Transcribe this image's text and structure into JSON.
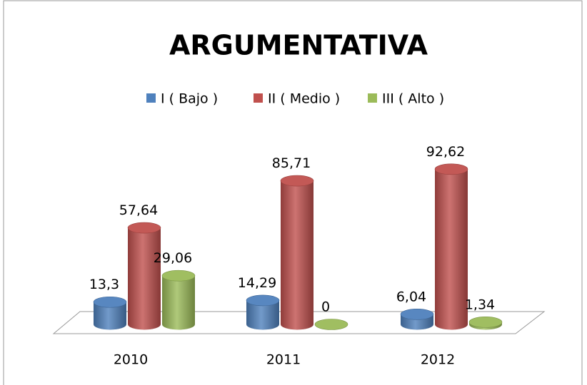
{
  "chart_data": {
    "type": "bar3d",
    "title": "ARGUMENTATIVA",
    "categories": [
      "2010",
      "2011",
      "2012"
    ],
    "series": [
      {
        "name": "I ( Bajo )",
        "color": "#4f81bd",
        "values": [
          13.3,
          14.29,
          6.04
        ],
        "value_labels": [
          "13,3",
          "14,29",
          "6,04"
        ]
      },
      {
        "name": "II ( Medio )",
        "color": "#c0504d",
        "values": [
          57.64,
          85.71,
          92.62
        ],
        "value_labels": [
          "57,64",
          "85,71",
          "92,62"
        ]
      },
      {
        "name": "III ( Alto )",
        "color": "#9bbb59",
        "values": [
          29.06,
          0,
          1.34
        ],
        "value_labels": [
          "29,06",
          "0",
          "1,34"
        ]
      }
    ],
    "legend": "top"
  }
}
